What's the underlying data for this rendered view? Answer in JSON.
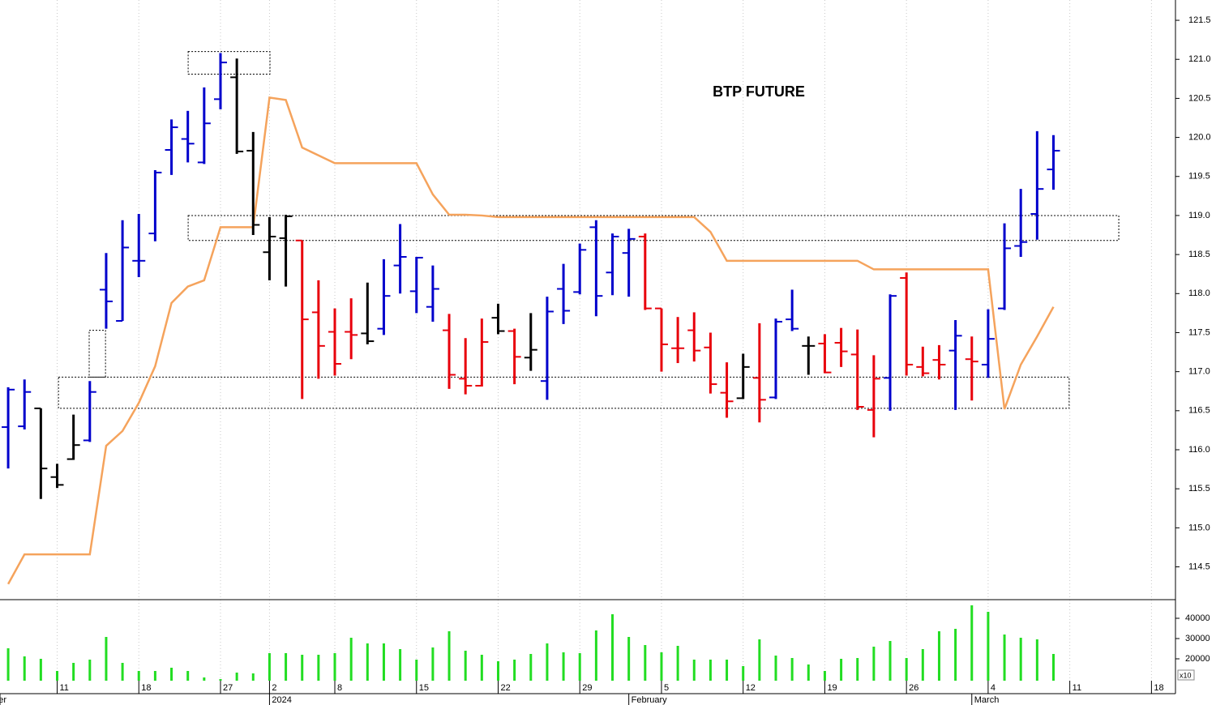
{
  "chart_data": {
    "type": "ohlc",
    "title": "BTP FUTURE",
    "x": [
      0,
      1,
      2,
      3,
      4,
      5,
      6,
      7,
      8,
      9,
      10,
      11,
      12,
      13,
      14,
      15,
      16,
      17,
      18,
      19,
      20,
      21,
      22,
      23,
      24,
      25,
      26,
      27,
      28,
      29,
      30,
      31,
      32,
      33,
      34,
      35,
      36,
      37,
      38,
      39,
      40,
      41,
      42,
      43,
      44,
      45,
      46,
      47,
      48,
      49,
      50,
      51,
      52,
      53,
      54,
      55,
      56,
      57,
      58,
      59,
      60,
      61,
      62,
      63,
      64
    ],
    "open": [
      116.29,
      116.3,
      116.53,
      115.65,
      115.88,
      116.12,
      118.05,
      117.65,
      118.42,
      118.77,
      119.84,
      119.98,
      119.68,
      120.49,
      120.77,
      119.83,
      118.53,
      118.71,
      118.68,
      117.76,
      117.51,
      117.51,
      117.49,
      117.55,
      118.36,
      118.03,
      117.83,
      117.53,
      116.91,
      116.82,
      117.69,
      117.52,
      117.18,
      116.88,
      118.06,
      118.02,
      118.85,
      118.27,
      118.52,
      118.73,
      117.81,
      117.3,
      117.53,
      117.31,
      116.73,
      116.66,
      116.92,
      116.67,
      117.67,
      117.33,
      117.36,
      117.37,
      117.22,
      116.51,
      116.92,
      118.2,
      117.06,
      117.15,
      117.27,
      117.16,
      117.09,
      117.81,
      118.61,
      119.02,
      119.59
    ],
    "high": [
      116.8,
      116.9,
      116.53,
      115.82,
      116.45,
      116.88,
      118.52,
      118.94,
      119.02,
      119.58,
      120.23,
      120.34,
      120.64,
      121.08,
      121.01,
      120.07,
      118.98,
      119.01,
      118.68,
      118.17,
      117.81,
      117.94,
      118.14,
      118.44,
      118.89,
      118.47,
      118.36,
      117.74,
      117.43,
      117.68,
      117.87,
      117.55,
      117.75,
      117.96,
      118.38,
      118.64,
      118.94,
      118.77,
      118.83,
      118.77,
      117.81,
      117.7,
      117.76,
      117.5,
      117.12,
      117.23,
      117.62,
      117.68,
      118.05,
      117.45,
      117.48,
      117.56,
      117.54,
      117.21,
      117.99,
      118.27,
      117.32,
      117.34,
      117.66,
      117.45,
      117.8,
      118.9,
      119.34,
      120.08,
      120.03
    ],
    "low": [
      115.76,
      116.26,
      115.37,
      115.51,
      115.87,
      116.1,
      117.55,
      117.65,
      118.21,
      118.67,
      119.52,
      119.68,
      119.66,
      120.36,
      119.79,
      118.75,
      118.17,
      118.09,
      116.65,
      116.91,
      116.95,
      117.16,
      117.35,
      117.47,
      118.0,
      117.75,
      117.64,
      116.78,
      116.71,
      116.81,
      117.48,
      116.84,
      117.01,
      116.64,
      117.61,
      117.99,
      117.71,
      117.98,
      117.96,
      117.79,
      117.0,
      117.11,
      117.13,
      116.72,
      116.41,
      116.65,
      116.35,
      116.65,
      117.52,
      116.96,
      116.98,
      117.06,
      116.51,
      116.16,
      116.5,
      116.95,
      116.94,
      116.9,
      116.51,
      116.63,
      116.92,
      117.79,
      118.47,
      118.69,
      119.33
    ],
    "close": [
      116.77,
      116.74,
      115.76,
      115.55,
      116.06,
      116.74,
      117.9,
      118.59,
      118.42,
      119.55,
      120.13,
      119.92,
      120.18,
      120.96,
      119.82,
      118.88,
      118.73,
      118.99,
      117.67,
      117.33,
      117.1,
      117.47,
      117.39,
      117.97,
      118.47,
      118.46,
      118.06,
      116.96,
      116.82,
      117.38,
      117.52,
      117.19,
      117.28,
      117.77,
      117.78,
      118.56,
      117.97,
      118.73,
      118.7,
      117.81,
      117.35,
      117.3,
      117.27,
      116.84,
      116.62,
      117.06,
      116.64,
      117.64,
      117.55,
      117.33,
      116.99,
      117.26,
      116.55,
      116.91,
      117.97,
      117.09,
      116.98,
      117.09,
      117.46,
      117.13,
      117.42,
      118.58,
      118.66,
      119.34,
      119.83
    ],
    "bar_colors": [
      "#0000cc",
      "#0000cc",
      "#000000",
      "#000000",
      "#000000",
      "#0000cc",
      "#0000cc",
      "#0000cc",
      "#0000cc",
      "#0000cc",
      "#0000cc",
      "#0000cc",
      "#0000cc",
      "#0000cc",
      "#000000",
      "#000000",
      "#000000",
      "#000000",
      "#e8000b",
      "#e8000b",
      "#e8000b",
      "#e8000b",
      "#000000",
      "#0000cc",
      "#0000cc",
      "#0000cc",
      "#0000cc",
      "#e8000b",
      "#e8000b",
      "#e8000b",
      "#000000",
      "#e8000b",
      "#000000",
      "#0000cc",
      "#0000cc",
      "#0000cc",
      "#0000cc",
      "#0000cc",
      "#0000cc",
      "#e8000b",
      "#e8000b",
      "#e8000b",
      "#e8000b",
      "#e8000b",
      "#e8000b",
      "#000000",
      "#e8000b",
      "#0000cc",
      "#0000cc",
      "#000000",
      "#e8000b",
      "#e8000b",
      "#e8000b",
      "#e8000b",
      "#0000cc",
      "#e8000b",
      "#e8000b",
      "#e8000b",
      "#0000cc",
      "#e8000b",
      "#0000cc",
      "#0000cc",
      "#0000cc",
      "#0000cc",
      "#0000cc"
    ],
    "line": {
      "color": "#f5a35c",
      "values": [
        114.28,
        114.66,
        114.66,
        114.66,
        114.66,
        114.66,
        116.05,
        116.24,
        116.6,
        117.07,
        117.88,
        118.09,
        118.17,
        118.85,
        118.85,
        118.85,
        120.51,
        120.48,
        119.87,
        119.77,
        119.67,
        119.67,
        119.67,
        119.67,
        119.67,
        119.67,
        119.27,
        119.01,
        119.01,
        119.0,
        118.98,
        118.98,
        118.98,
        118.98,
        118.98,
        118.98,
        118.98,
        118.98,
        118.98,
        118.98,
        118.98,
        118.98,
        118.98,
        118.79,
        118.42,
        118.42,
        118.42,
        118.42,
        118.42,
        118.42,
        118.42,
        118.42,
        118.42,
        118.31,
        118.31,
        118.31,
        118.31,
        118.31,
        118.31,
        118.31,
        118.31,
        116.52,
        117.09,
        117.45,
        117.83
      ]
    },
    "zones": [
      {
        "x": [
          11.02,
          16.03
        ],
        "y": [
          120.81,
          121.1
        ]
      },
      {
        "x": [
          11.02,
          68.0
        ],
        "y": [
          118.68,
          119.0
        ]
      },
      {
        "x": [
          3.08,
          64.96
        ],
        "y": [
          116.53,
          116.93
        ]
      },
      {
        "x": [
          4.96,
          5.96
        ],
        "y": [
          116.93,
          117.53
        ]
      }
    ],
    "xlim": [
      -0.5,
      71.47
    ],
    "ylim": [
      114.08,
      121.76
    ],
    "yticks": [
      {
        "value": 114.5,
        "label": "114.5"
      },
      {
        "value": 115,
        "label": "115.0"
      },
      {
        "value": 115.5,
        "label": "115.5"
      },
      {
        "value": 116,
        "label": "116.0"
      },
      {
        "value": 116.5,
        "label": "116.5"
      },
      {
        "value": 117,
        "label": "117.0"
      },
      {
        "value": 117.5,
        "label": "117.5"
      },
      {
        "value": 118,
        "label": "118.0"
      },
      {
        "value": 118.5,
        "label": "118.5"
      },
      {
        "value": 119,
        "label": "119.0"
      },
      {
        "value": 119.5,
        "label": "119.5"
      },
      {
        "value": 120,
        "label": "120.0"
      },
      {
        "value": 120.5,
        "label": "120.5"
      },
      {
        "value": 121,
        "label": "121.0"
      },
      {
        "value": 121.5,
        "label": "121.5"
      }
    ],
    "xticks": [
      {
        "value": 3,
        "label": "11"
      },
      {
        "value": 8,
        "label": "18"
      },
      {
        "value": 13,
        "label": "27"
      },
      {
        "value": 16,
        "label": "2"
      },
      {
        "value": 20,
        "label": "8"
      },
      {
        "value": 25,
        "label": "15"
      },
      {
        "value": 30,
        "label": "22"
      },
      {
        "value": 35,
        "label": "29"
      },
      {
        "value": 40,
        "label": "5"
      },
      {
        "value": 45,
        "label": "12"
      },
      {
        "value": 50,
        "label": "19"
      },
      {
        "value": 55,
        "label": "26"
      },
      {
        "value": 60,
        "label": "4"
      },
      {
        "value": 65,
        "label": "11"
      },
      {
        "value": 70,
        "label": "18"
      }
    ],
    "month_ticks": [
      {
        "value": -0.5,
        "label": "er"
      },
      {
        "value": 16,
        "label": "2024"
      },
      {
        "value": 38,
        "label": "February"
      },
      {
        "value": 59,
        "label": "March"
      }
    ],
    "grid": true,
    "volume": {
      "color": "#22dd22",
      "unit_label": "x10",
      "values": [
        25200,
        21200,
        20000,
        14000,
        18000,
        19600,
        30800,
        18000,
        14000,
        14000,
        15600,
        14000,
        10800,
        10000,
        13200,
        12800,
        22800,
        22800,
        22000,
        22000,
        22800,
        30400,
        27600,
        27600,
        24800,
        19600,
        25600,
        33600,
        24000,
        22000,
        18800,
        19600,
        22400,
        27600,
        23200,
        22800,
        34000,
        42000,
        30800,
        26800,
        23200,
        26400,
        19600,
        19600,
        19600,
        16400,
        29600,
        21600,
        20400,
        17200,
        14000,
        20000,
        20400,
        26000,
        28800,
        20400,
        24800,
        33600,
        34800,
        46400,
        43200,
        32000,
        30400,
        29600,
        22400
      ],
      "ylim": [
        9200,
        48400
      ],
      "yticks": [
        20000,
        30000,
        40000
      ]
    }
  }
}
